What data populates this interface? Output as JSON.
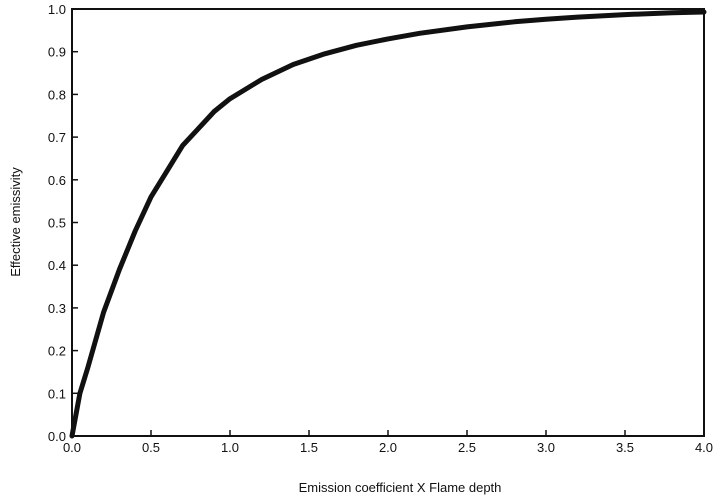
{
  "chart_data": {
    "type": "line",
    "title": "",
    "xlabel": "Emission coefficient X Flame depth",
    "ylabel": "Effective emissivity",
    "xlim": [
      0.0,
      4.0
    ],
    "ylim": [
      0.0,
      1.0
    ],
    "xticks": [
      "0.0",
      "0.5",
      "1.0",
      "1.5",
      "2.0",
      "2.5",
      "3.0",
      "3.5",
      "4.0"
    ],
    "yticks": [
      "0.0",
      "0.1",
      "0.2",
      "0.3",
      "0.4",
      "0.5",
      "0.6",
      "0.7",
      "0.8",
      "0.9",
      "1.0"
    ],
    "grid": false,
    "legend": "none",
    "line_color": "#111111",
    "series": [
      {
        "x": [
          0.0,
          0.05,
          0.1,
          0.2,
          0.3,
          0.4,
          0.5,
          0.6,
          0.7,
          0.8,
          0.9,
          1.0,
          1.2,
          1.4,
          1.6,
          1.8,
          2.0,
          2.2,
          2.5,
          2.8,
          3.0,
          3.2,
          3.5,
          3.8,
          4.0
        ],
        "y": [
          0.0,
          0.1,
          0.16,
          0.29,
          0.39,
          0.48,
          0.56,
          0.62,
          0.68,
          0.72,
          0.76,
          0.79,
          0.835,
          0.87,
          0.895,
          0.915,
          0.93,
          0.943,
          0.958,
          0.97,
          0.976,
          0.981,
          0.987,
          0.991,
          0.993
        ]
      }
    ]
  }
}
